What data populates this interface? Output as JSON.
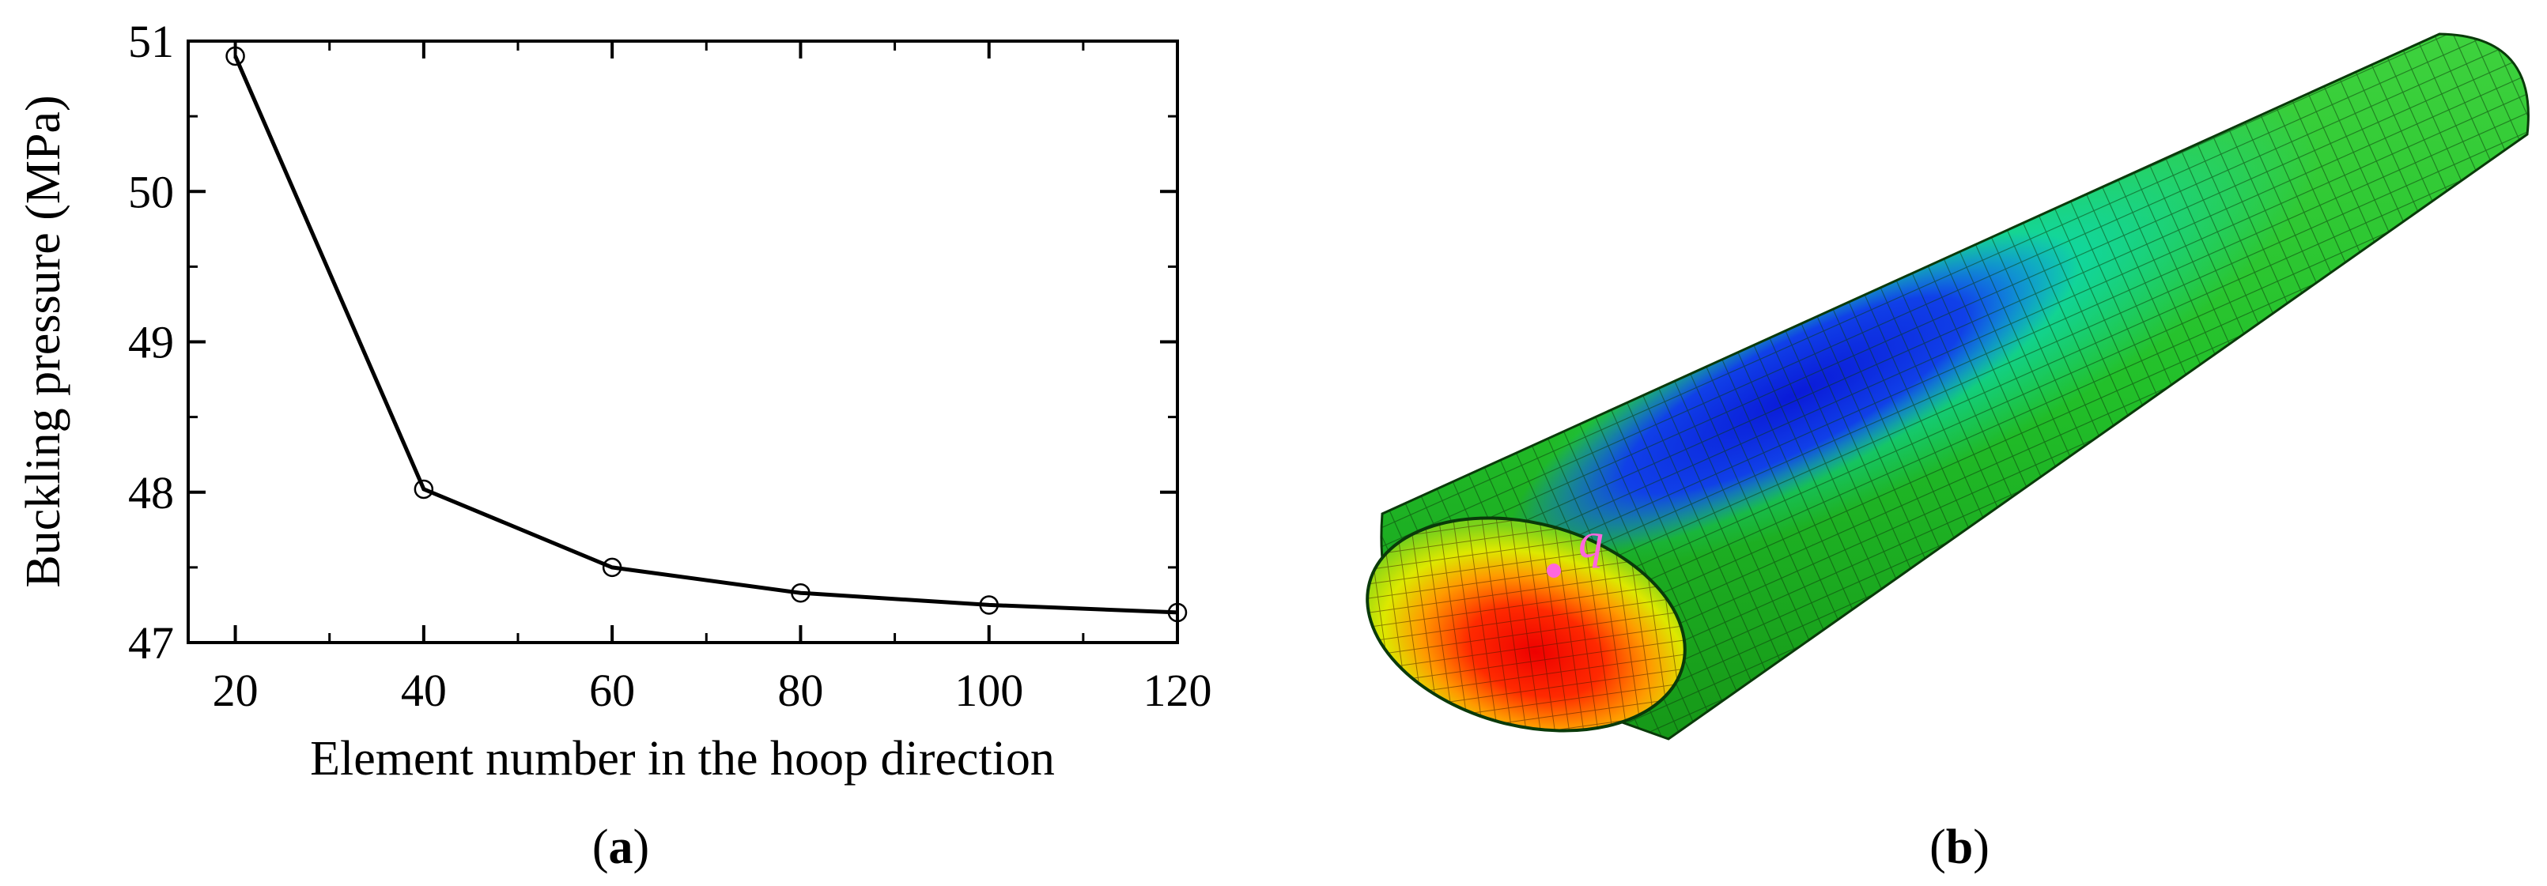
{
  "chart_data": [
    {
      "type": "line",
      "x": [
        20,
        40,
        60,
        80,
        100,
        120
      ],
      "series": [
        {
          "values": [
            50.9,
            48.02,
            47.5,
            47.33,
            47.25,
            47.2
          ],
          "marker": "open-circle",
          "color": "#000000"
        }
      ],
      "xlabel": "Element number in the hoop direction",
      "ylabel": "Buckling pressure (MPa)",
      "xlim": [
        15,
        120
      ],
      "ylim": [
        47,
        51
      ],
      "xticks": [
        "20",
        "40",
        "60",
        "80",
        "100",
        "120"
      ],
      "yticks": [
        "47",
        "48",
        "49",
        "50",
        "51"
      ],
      "grid": false
    }
  ],
  "panels": {
    "a": {
      "open": "(",
      "letter": "a",
      "close": ")"
    },
    "b": {
      "open": "(",
      "letter": "b",
      "close": ")"
    }
  },
  "fe_model": {
    "point_label": "q",
    "point_color": "#ff66dd",
    "colormap": [
      "#ff0000",
      "#ffff00",
      "#22dd22",
      "#00dddd",
      "#0022ee"
    ]
  }
}
